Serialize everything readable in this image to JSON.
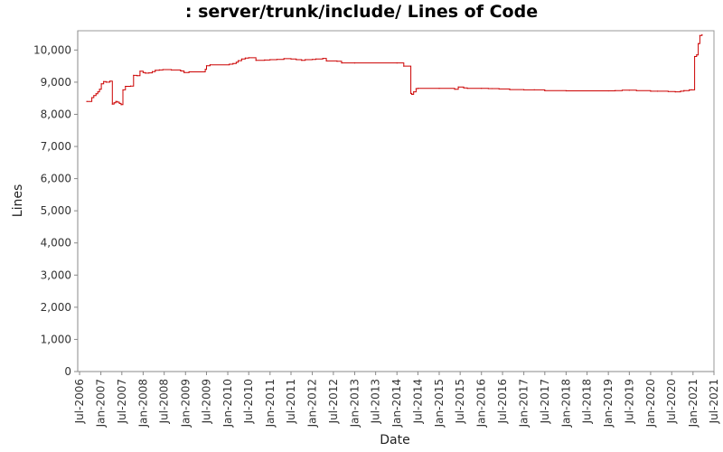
{
  "chart_data": {
    "type": "line",
    "title": ": server/trunk/include/ Lines of Code",
    "xlabel": "Date",
    "ylabel": "Lines",
    "xlim": [
      "2006-06-15",
      "2021-07-01"
    ],
    "ylim": [
      0,
      10600
    ],
    "grid": false,
    "legend": "none",
    "y_ticks": [
      0,
      1000,
      2000,
      3000,
      4000,
      5000,
      6000,
      7000,
      8000,
      9000,
      10000
    ],
    "y_tick_labels": [
      "0",
      "1,000",
      "2,000",
      "3,000",
      "4,000",
      "5,000",
      "6,000",
      "7,000",
      "8,000",
      "9,000",
      "10,000"
    ],
    "x_ticks": [
      "2006-07-01",
      "2007-01-01",
      "2007-07-01",
      "2008-01-01",
      "2008-07-01",
      "2009-01-01",
      "2009-07-01",
      "2010-01-01",
      "2010-07-01",
      "2011-01-01",
      "2011-07-01",
      "2012-01-01",
      "2012-07-01",
      "2013-01-01",
      "2013-07-01",
      "2014-01-01",
      "2014-07-01",
      "2015-01-01",
      "2015-07-01",
      "2016-01-01",
      "2016-07-01",
      "2017-01-01",
      "2017-07-01",
      "2018-01-01",
      "2018-07-01",
      "2019-01-01",
      "2019-07-01",
      "2020-01-01",
      "2020-07-01",
      "2021-01-01",
      "2021-07-01"
    ],
    "x_tick_labels": [
      "Jul-2006",
      "Jan-2007",
      "Jul-2007",
      "Jan-2008",
      "Jul-2008",
      "Jan-2009",
      "Jul-2009",
      "Jan-2010",
      "Jul-2010",
      "Jan-2011",
      "Jul-2011",
      "Jan-2012",
      "Jul-2012",
      "Jan-2013",
      "Jul-2013",
      "Jan-2014",
      "Jul-2014",
      "Jan-2015",
      "Jul-2015",
      "Jan-2016",
      "Jul-2016",
      "Jan-2017",
      "Jul-2017",
      "Jan-2018",
      "Jul-2018",
      "Jan-2019",
      "Jul-2019",
      "Jan-2020",
      "Jul-2020",
      "Jan-2021",
      "Jul-2021"
    ],
    "line_color": "#cc0000",
    "series": [
      {
        "x": [
          "2006-09-01",
          "2006-10-15",
          "2006-11-01",
          "2006-11-20",
          "2006-12-05",
          "2006-12-20",
          "2007-01-05",
          "2007-01-25",
          "2007-02-15",
          "2007-03-20",
          "2007-04-10",
          "2007-04-25",
          "2007-05-10",
          "2007-05-25",
          "2007-06-10",
          "2007-06-25",
          "2007-07-10",
          "2007-08-01",
          "2007-09-15",
          "2007-10-10",
          "2007-11-10",
          "2007-12-05",
          "2008-01-01",
          "2008-01-20",
          "2008-02-20",
          "2008-03-20",
          "2008-04-15",
          "2008-05-20",
          "2008-06-20",
          "2008-09-01",
          "2008-11-20",
          "2008-12-20",
          "2009-02-01",
          "2009-06-20",
          "2009-07-01",
          "2009-08-01",
          "2010-01-15",
          "2010-02-15",
          "2010-03-15",
          "2010-04-01",
          "2010-05-01",
          "2010-06-01",
          "2010-07-01",
          "2010-09-01",
          "2010-11-15",
          "2011-01-01",
          "2011-03-01",
          "2011-05-01",
          "2011-07-01",
          "2011-08-15",
          "2011-10-01",
          "2011-11-01",
          "2012-01-01",
          "2012-02-01",
          "2012-04-01",
          "2012-05-01",
          "2012-08-01",
          "2012-09-10",
          "2013-01-01",
          "2014-01-01",
          "2014-03-01",
          "2014-05-01",
          "2014-05-10",
          "2014-05-25",
          "2014-06-15",
          "2014-07-01",
          "2015-01-01",
          "2015-05-15",
          "2015-06-15",
          "2015-08-01",
          "2015-09-01",
          "2016-01-01",
          "2016-03-01",
          "2016-04-01",
          "2016-06-01",
          "2016-09-01",
          "2017-01-01",
          "2017-04-01",
          "2017-07-01",
          "2018-01-01",
          "2019-01-01",
          "2019-03-01",
          "2019-05-01",
          "2019-07-01",
          "2019-09-01",
          "2020-01-01",
          "2020-03-01",
          "2020-06-01",
          "2020-08-01",
          "2020-09-15",
          "2020-10-15",
          "2020-12-01",
          "2020-12-20",
          "2021-01-15",
          "2021-02-01",
          "2021-02-15",
          "2021-03-01",
          "2021-03-20"
        ],
        "values": [
          8400,
          8520,
          8580,
          8640,
          8700,
          8780,
          8950,
          9020,
          9000,
          9030,
          8320,
          8360,
          8400,
          8380,
          8340,
          8300,
          8760,
          8870,
          8880,
          9210,
          9200,
          9340,
          9300,
          9280,
          9290,
          9330,
          9370,
          9380,
          9390,
          9380,
          9350,
          9300,
          9320,
          9400,
          9510,
          9540,
          9560,
          9580,
          9620,
          9670,
          9720,
          9750,
          9760,
          9680,
          9690,
          9700,
          9710,
          9730,
          9720,
          9700,
          9680,
          9700,
          9710,
          9720,
          9740,
          9660,
          9650,
          9600,
          9600,
          9600,
          9500,
          8650,
          8620,
          8700,
          8800,
          8810,
          8810,
          8780,
          8850,
          8820,
          8810,
          8810,
          8800,
          8800,
          8790,
          8770,
          8760,
          8760,
          8740,
          8730,
          8730,
          8740,
          8750,
          8750,
          8740,
          8720,
          8720,
          8710,
          8700,
          8720,
          8740,
          8760,
          8760,
          9800,
          9850,
          10200,
          10450,
          10480
        ]
      }
    ]
  }
}
